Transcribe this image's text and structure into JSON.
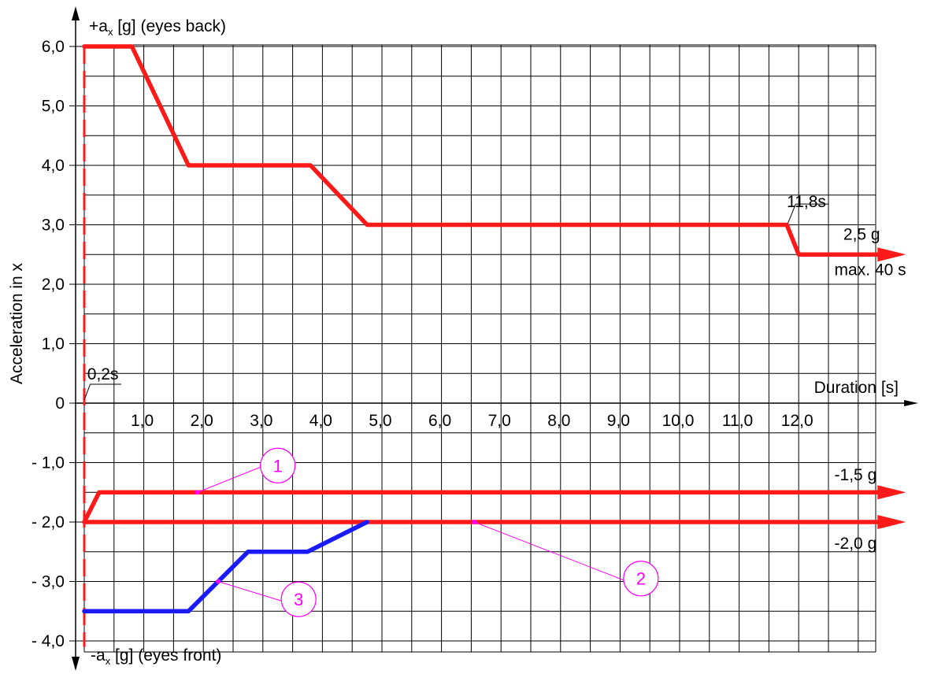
{
  "chart_data": {
    "type": "line",
    "title": "",
    "ylabel": "Acceleration in x",
    "xlabel": "Duration [s]",
    "y_top_label": "+a",
    "y_top_label_sub": "x",
    "y_top_label_rest": " [g] (eyes back)",
    "y_bottom_label": "-a",
    "y_bottom_label_sub": "x",
    "y_bottom_label_rest": " [g] (eyes front)",
    "xlim": [
      0,
      13.3
    ],
    "ylim": [
      -4.25,
      6.6
    ],
    "grid": true,
    "x_ticks": [
      {
        "value": 1,
        "label": "1,0"
      },
      {
        "value": 2,
        "label": "2,0"
      },
      {
        "value": 3,
        "label": "3,0"
      },
      {
        "value": 4,
        "label": "4,0"
      },
      {
        "value": 5,
        "label": "5,0"
      },
      {
        "value": 6,
        "label": "6,0"
      },
      {
        "value": 7,
        "label": "7,0"
      },
      {
        "value": 8,
        "label": "8,0"
      },
      {
        "value": 9,
        "label": "9,0"
      },
      {
        "value": 10,
        "label": "10,0"
      },
      {
        "value": 11,
        "label": "11,0"
      },
      {
        "value": 12,
        "label": "12,0"
      }
    ],
    "y_ticks": [
      {
        "value": 6,
        "label": "6,0"
      },
      {
        "value": 5,
        "label": "5,0"
      },
      {
        "value": 4,
        "label": "4,0"
      },
      {
        "value": 3,
        "label": "3,0"
      },
      {
        "value": 2,
        "label": "2,0"
      },
      {
        "value": 1,
        "label": "1,0"
      },
      {
        "value": 0,
        "label": "0"
      },
      {
        "value": -1,
        "label": "- 1,0"
      },
      {
        "value": -2,
        "label": "- 2,0"
      },
      {
        "value": -3,
        "label": "- 3,0"
      },
      {
        "value": -4,
        "label": "- 4,0"
      }
    ],
    "series": [
      {
        "color": "#ff1a1a",
        "points": [
          [
            0,
            6
          ],
          [
            0.8,
            6
          ],
          [
            1.75,
            4
          ],
          [
            3.8,
            4
          ],
          [
            4.75,
            3
          ],
          [
            11.8,
            3
          ],
          [
            12,
            2.5
          ],
          [
            13.8,
            2.5
          ]
        ],
        "arrow_end": true
      },
      {
        "color": "#ff1a1a",
        "points": [
          [
            0,
            -2
          ],
          [
            0.25,
            -1.5
          ],
          [
            13.8,
            -1.5
          ]
        ],
        "arrow_end": true
      },
      {
        "color": "#ff1a1a",
        "points": [
          [
            0,
            -2
          ],
          [
            13.8,
            -2
          ]
        ],
        "arrow_end": true
      },
      {
        "color": "#1a1aff",
        "points": [
          [
            0,
            -3.5
          ],
          [
            1.75,
            -3.5
          ],
          [
            2.75,
            -2.5
          ],
          [
            3.75,
            -2.5
          ],
          [
            4.75,
            -2
          ]
        ],
        "arrow_end": false
      }
    ],
    "dashed_line": {
      "x": 0,
      "y_from": -4.1,
      "y_to": 6,
      "color": "#ff1a1a"
    },
    "annotations": [
      {
        "text": "0,2s",
        "x": 0.05,
        "y": 0.4
      },
      {
        "text": "11,8s",
        "x": 11.8,
        "y": 3.3
      },
      {
        "text": "2,5 g",
        "x": 12.75,
        "y": 2.75
      },
      {
        "text": "max. 40 s",
        "x": 12.6,
        "y": 2.15
      },
      {
        "text": "-1,5 g",
        "x": 12.6,
        "y": -1.3
      },
      {
        "text": "-2,0 g",
        "x": 12.6,
        "y": -2.45
      }
    ],
    "callouts": [
      {
        "label": "1",
        "color": "#ff00ff",
        "cx": 3.25,
        "cy": -1.05,
        "px": 1.9,
        "py": -1.5
      },
      {
        "label": "2",
        "color": "#ff00ff",
        "cx": 9.35,
        "cy": -2.95,
        "px": 6.55,
        "py": -2.0
      },
      {
        "label": "3",
        "color": "#ff00ff",
        "cx": 3.6,
        "cy": -3.3,
        "px": 2.25,
        "py": -3.0
      }
    ]
  }
}
